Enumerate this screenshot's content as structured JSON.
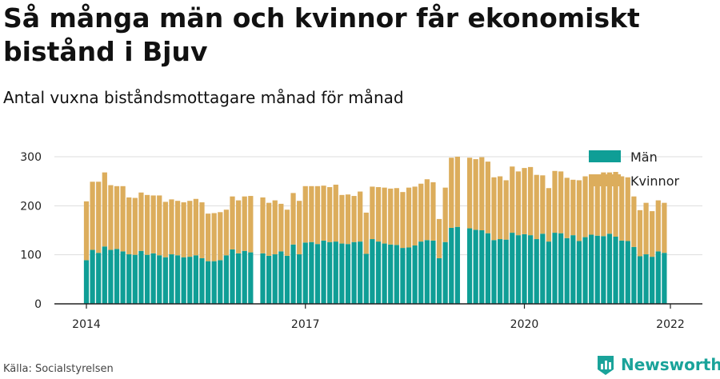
{
  "title": "Så många män och kvinnor får ekonomiskt bistånd i Bjuv",
  "subtitle": "Antal vuxna biståndsmottagare månad för månad",
  "source": "Källa: Socialstyrelsen",
  "brand": "Newsworthy",
  "colors": {
    "men": "#0f9e96",
    "women": "#dcad5c",
    "grid": "#dddddd",
    "axis": "#222222"
  },
  "chart_data": {
    "type": "bar",
    "stacked": true,
    "x_start": "2014-01",
    "x_end": "2022-01",
    "x_ticks": [
      "2014",
      "2017",
      "2020",
      "2022"
    ],
    "ylim": [
      0,
      300
    ],
    "y_ticks": [
      0,
      100,
      200,
      300
    ],
    "grid": true,
    "legend_position": "top-right",
    "months": [
      "2014-01",
      "2014-02",
      "2014-03",
      "2014-04",
      "2014-05",
      "2014-06",
      "2014-07",
      "2014-08",
      "2014-09",
      "2014-10",
      "2014-11",
      "2014-12",
      "2015-01",
      "2015-02",
      "2015-03",
      "2015-04",
      "2015-05",
      "2015-06",
      "2015-07",
      "2015-08",
      "2015-09",
      "2015-10",
      "2015-11",
      "2015-12",
      "2016-01",
      "2016-02",
      "2016-03",
      "2016-04",
      "2016-05",
      "2016-06",
      "2016-07",
      "2016-08",
      "2016-09",
      "2016-10",
      "2016-11",
      "2016-12",
      "2017-01",
      "2017-02",
      "2017-03",
      "2017-04",
      "2017-05",
      "2017-06",
      "2017-07",
      "2017-08",
      "2017-09",
      "2017-10",
      "2017-11",
      "2017-12",
      "2018-01",
      "2018-02",
      "2018-03",
      "2018-04",
      "2018-05",
      "2018-06",
      "2018-07",
      "2018-08",
      "2018-09",
      "2018-10",
      "2018-11",
      "2018-12",
      "2019-01",
      "2019-02",
      "2019-03",
      "2019-04",
      "2019-05",
      "2019-06",
      "2019-07",
      "2019-08",
      "2019-09",
      "2019-10",
      "2019-11",
      "2019-12",
      "2020-01",
      "2020-02",
      "2020-03",
      "2020-04",
      "2020-05",
      "2020-06",
      "2020-07",
      "2020-08",
      "2020-09",
      "2020-10",
      "2020-11",
      "2020-12",
      "2021-01",
      "2021-02",
      "2021-03",
      "2021-04",
      "2021-05",
      "2021-06",
      "2021-07",
      "2021-08",
      "2021-09",
      "2021-10",
      "2021-11",
      "2021-12",
      "2022-01"
    ],
    "series": [
      {
        "name": "Män",
        "values": [
          89,
          110,
          104,
          117,
          110,
          112,
          107,
          101,
          100,
          108,
          100,
          103,
          99,
          95,
          101,
          99,
          95,
          96,
          99,
          93,
          87,
          87,
          89,
          99,
          111,
          103,
          108,
          105,
          null,
          103,
          98,
          101,
          107,
          98,
          121,
          101,
          125,
          126,
          122,
          129,
          126,
          127,
          123,
          122,
          126,
          127,
          102,
          132,
          127,
          123,
          121,
          120,
          114,
          115,
          119,
          127,
          130,
          129,
          93,
          126,
          155,
          157,
          null,
          154,
          151,
          150,
          144,
          130,
          132,
          131,
          145,
          140,
          142,
          140,
          132,
          143,
          127,
          145,
          144,
          134,
          140,
          128,
          136,
          141,
          139,
          138,
          143,
          137,
          129,
          128,
          116,
          97,
          101,
          96,
          107,
          104,
          null
        ],
        "missing_note": null
      },
      {
        "name": "Kvinnor",
        "values": [
          120,
          139,
          145,
          151,
          132,
          128,
          133,
          116,
          116,
          119,
          122,
          118,
          122,
          113,
          112,
          111,
          112,
          114,
          115,
          114,
          97,
          98,
          98,
          93,
          108,
          108,
          111,
          115,
          null,
          114,
          108,
          110,
          97,
          94,
          105,
          109,
          115,
          114,
          118,
          112,
          112,
          116,
          99,
          101,
          94,
          102,
          84,
          107,
          111,
          114,
          114,
          116,
          114,
          122,
          120,
          118,
          124,
          119,
          80,
          111,
          143,
          143,
          null,
          144,
          144,
          149,
          146,
          128,
          128,
          121,
          135,
          130,
          135,
          139,
          131,
          119,
          109,
          126,
          126,
          123,
          113,
          124,
          124,
          118,
          125,
          130,
          125,
          132,
          131,
          130,
          103,
          94,
          105,
          93,
          104,
          102,
          null
        ]
      }
    ]
  }
}
